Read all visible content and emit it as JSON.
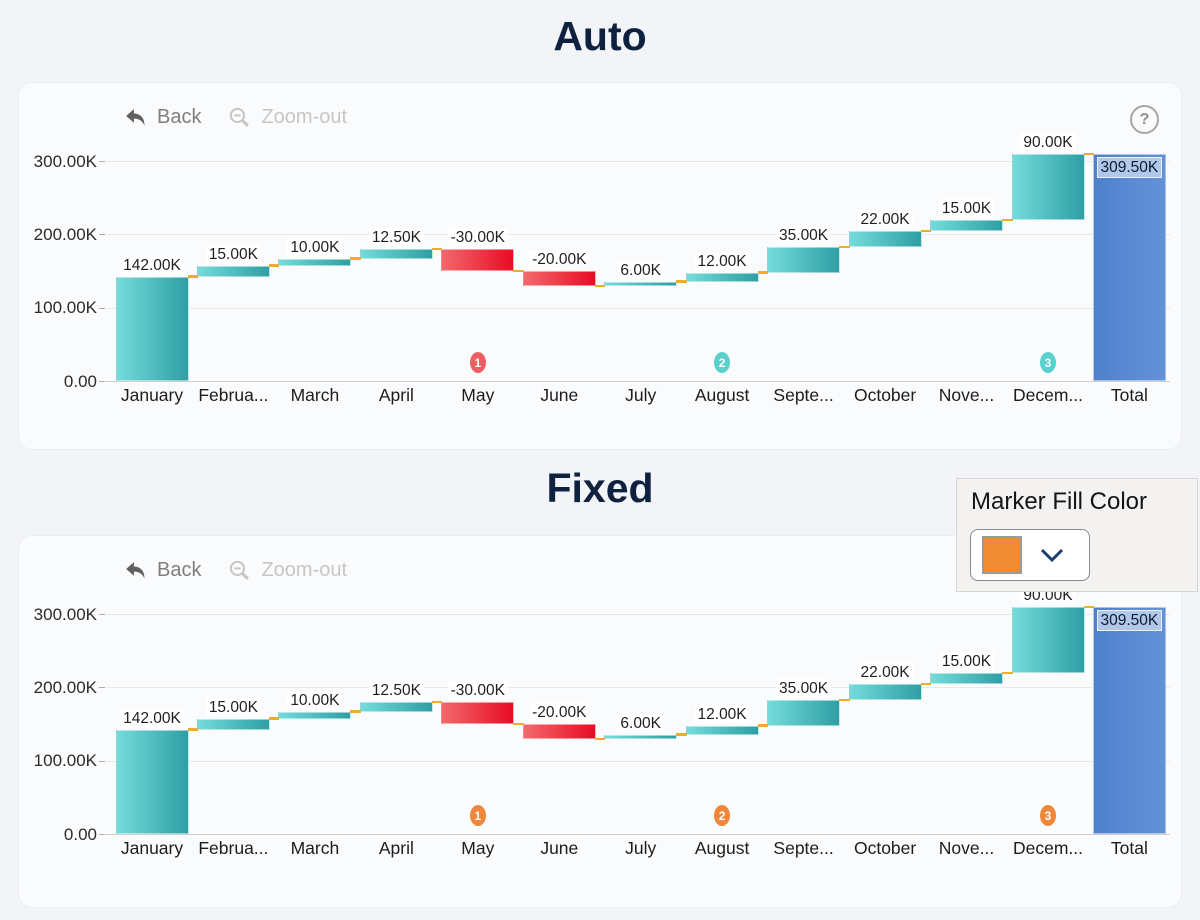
{
  "page": {
    "background": "#f2f4f8"
  },
  "sections": [
    {
      "title": "Auto"
    },
    {
      "title": "Fixed"
    }
  ],
  "toolbar": {
    "back_label": "Back",
    "zoom_out_label": "Zoom-out",
    "help_label": "?"
  },
  "marker_panel": {
    "label": "Marker Fill Color",
    "selected_color": "#f18b33"
  },
  "chart_data": [
    {
      "type": "waterfall",
      "title": "Auto",
      "xlabel": "",
      "ylabel": "",
      "ylim": [
        0,
        320000
      ],
      "grid": true,
      "y_ticks": [
        {
          "label": "300.00K",
          "value": 300000
        },
        {
          "label": "200.00K",
          "value": 200000
        },
        {
          "label": "100.00K",
          "value": 100000
        },
        {
          "label": "0.00",
          "value": 0
        }
      ],
      "items": [
        {
          "category": "January",
          "axis_label": "January",
          "value": 142000,
          "display": "142.00K",
          "kind": "increase"
        },
        {
          "category": "February",
          "axis_label": "Februa...",
          "value": 15000,
          "display": "15.00K",
          "kind": "increase"
        },
        {
          "category": "March",
          "axis_label": "March",
          "value": 10000,
          "display": "10.00K",
          "kind": "increase"
        },
        {
          "category": "April",
          "axis_label": "April",
          "value": 12500,
          "display": "12.50K",
          "kind": "increase"
        },
        {
          "category": "May",
          "axis_label": "May",
          "value": -30000,
          "display": "-30.00K",
          "kind": "decrease"
        },
        {
          "category": "June",
          "axis_label": "June",
          "value": -20000,
          "display": "-20.00K",
          "kind": "decrease"
        },
        {
          "category": "July",
          "axis_label": "July",
          "value": 6000,
          "display": "6.00K",
          "kind": "increase"
        },
        {
          "category": "August",
          "axis_label": "August",
          "value": 12000,
          "display": "12.00K",
          "kind": "increase"
        },
        {
          "category": "September",
          "axis_label": "Septe...",
          "value": 35000,
          "display": "35.00K",
          "kind": "increase"
        },
        {
          "category": "October",
          "axis_label": "October",
          "value": 22000,
          "display": "22.00K",
          "kind": "increase"
        },
        {
          "category": "November",
          "axis_label": "Nove...",
          "value": 15000,
          "display": "15.00K",
          "kind": "increase"
        },
        {
          "category": "December",
          "axis_label": "Decem...",
          "value": 90000,
          "display": "90.00K",
          "kind": "increase"
        },
        {
          "category": "Total",
          "axis_label": "Total",
          "value": 309500,
          "display": "309.50K",
          "kind": "total"
        }
      ],
      "markers": [
        {
          "category": "May",
          "number": "1",
          "color": "#ee5d63"
        },
        {
          "category": "August",
          "number": "2",
          "color": "#59d1cd"
        },
        {
          "category": "December",
          "number": "3",
          "color": "#59d1cd"
        }
      ],
      "colors": {
        "increase": [
          "#74dbdb",
          "#2e9fa4"
        ],
        "decrease": [
          "#f2696c",
          "#e80c26"
        ],
        "total": [
          "#4f81cc",
          "#6392d9"
        ],
        "connector": "#efab2c",
        "total_label_bg": "#b9cdec"
      }
    },
    {
      "type": "waterfall",
      "title": "Fixed",
      "xlabel": "",
      "ylabel": "",
      "ylim": [
        0,
        320000
      ],
      "grid": true,
      "y_ticks": [
        {
          "label": "300.00K",
          "value": 300000
        },
        {
          "label": "200.00K",
          "value": 200000
        },
        {
          "label": "100.00K",
          "value": 100000
        },
        {
          "label": "0.00",
          "value": 0
        }
      ],
      "items": [
        {
          "category": "January",
          "axis_label": "January",
          "value": 142000,
          "display": "142.00K",
          "kind": "increase"
        },
        {
          "category": "February",
          "axis_label": "Februa...",
          "value": 15000,
          "display": "15.00K",
          "kind": "increase"
        },
        {
          "category": "March",
          "axis_label": "March",
          "value": 10000,
          "display": "10.00K",
          "kind": "increase"
        },
        {
          "category": "April",
          "axis_label": "April",
          "value": 12500,
          "display": "12.50K",
          "kind": "increase"
        },
        {
          "category": "May",
          "axis_label": "May",
          "value": -30000,
          "display": "-30.00K",
          "kind": "decrease"
        },
        {
          "category": "June",
          "axis_label": "June",
          "value": -20000,
          "display": "-20.00K",
          "kind": "decrease"
        },
        {
          "category": "July",
          "axis_label": "July",
          "value": 6000,
          "display": "6.00K",
          "kind": "increase"
        },
        {
          "category": "August",
          "axis_label": "August",
          "value": 12000,
          "display": "12.00K",
          "kind": "increase"
        },
        {
          "category": "September",
          "axis_label": "Septe...",
          "value": 35000,
          "display": "35.00K",
          "kind": "increase"
        },
        {
          "category": "October",
          "axis_label": "October",
          "value": 22000,
          "display": "22.00K",
          "kind": "increase"
        },
        {
          "category": "November",
          "axis_label": "Nove...",
          "value": 15000,
          "display": "15.00K",
          "kind": "increase"
        },
        {
          "category": "December",
          "axis_label": "Decem...",
          "value": 90000,
          "display": "90.00K",
          "kind": "increase"
        },
        {
          "category": "Total",
          "axis_label": "Total",
          "value": 309500,
          "display": "309.50K",
          "kind": "total"
        }
      ],
      "markers": [
        {
          "category": "May",
          "number": "1",
          "color": "#f0863a"
        },
        {
          "category": "August",
          "number": "2",
          "color": "#f0863a"
        },
        {
          "category": "December",
          "number": "3",
          "color": "#f0863a"
        }
      ],
      "colors": {
        "increase": [
          "#74dbdb",
          "#2e9fa4"
        ],
        "decrease": [
          "#f2696c",
          "#e80c26"
        ],
        "total": [
          "#4f81cc",
          "#6392d9"
        ],
        "connector": "#efab2c",
        "total_label_bg": "#b9cdec"
      }
    }
  ]
}
